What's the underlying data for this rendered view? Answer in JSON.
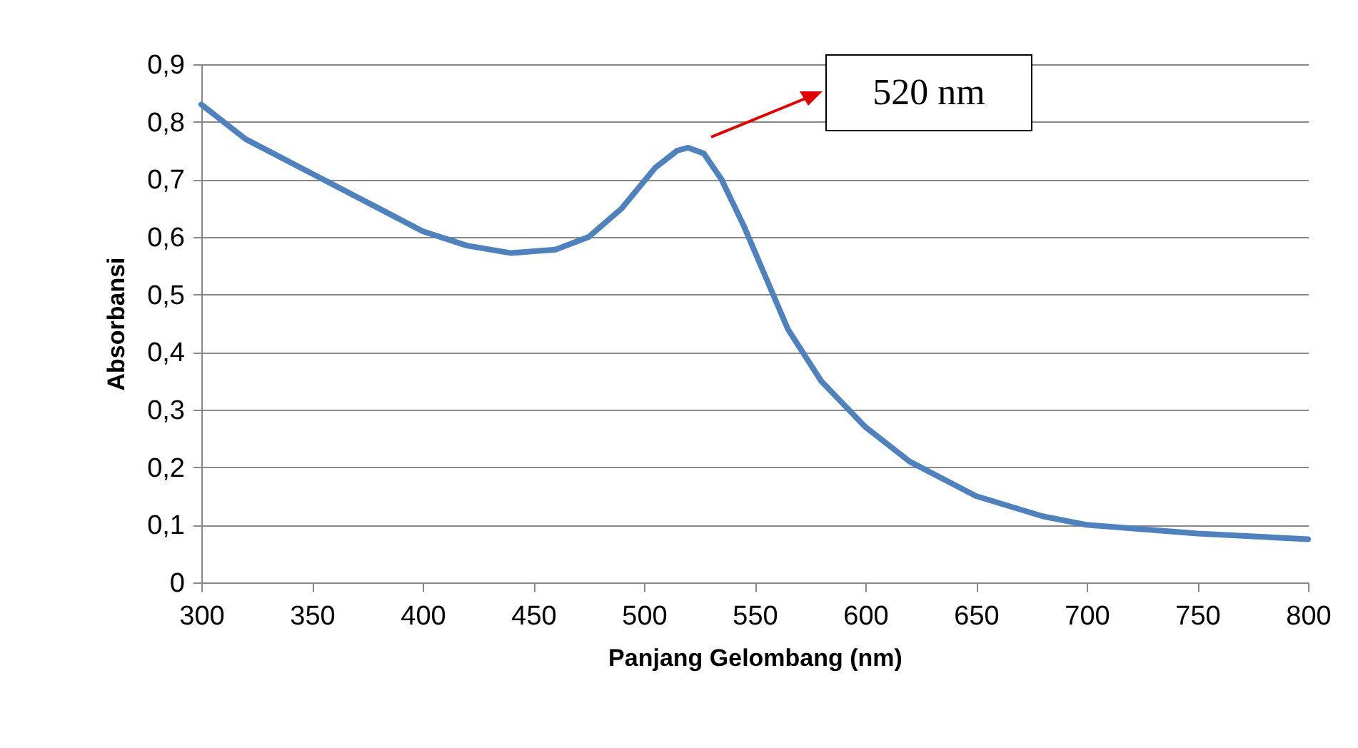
{
  "chart_data": {
    "type": "line",
    "xlabel": "Panjang Gelombang (nm)",
    "ylabel": "Absorbansi",
    "annotations": [
      "520 nm"
    ],
    "xlim": [
      300,
      800
    ],
    "xticks": [
      300,
      350,
      400,
      450,
      500,
      550,
      600,
      650,
      700,
      750,
      800
    ],
    "ylim": [
      0,
      0.9
    ],
    "yticks": [
      0,
      {
        "value": 0.1,
        "label": "0,1"
      },
      {
        "value": 0.2,
        "label": "0,2"
      },
      {
        "value": 0.3,
        "label": "0,3"
      },
      {
        "value": 0.4,
        "label": "0,4"
      },
      {
        "value": 0.5,
        "label": "0,5"
      },
      {
        "value": 0.6,
        "label": "0,6"
      },
      {
        "value": 0.7,
        "label": "0,7"
      },
      {
        "value": 0.8,
        "label": "0,8"
      },
      {
        "value": 0.9,
        "label": "0,9"
      }
    ],
    "grid": "y",
    "marker": "none",
    "line_style": "solid",
    "x": [
      300,
      320,
      350,
      380,
      400,
      420,
      440,
      460,
      475,
      490,
      505,
      515,
      520,
      527,
      535,
      545,
      555,
      565,
      580,
      600,
      620,
      650,
      680,
      700,
      750,
      800
    ],
    "series": [
      {
        "color": "#4f81bd",
        "values": [
          0.83,
          0.77,
          0.71,
          0.65,
          0.61,
          0.585,
          0.572,
          0.578,
          0.6,
          0.65,
          0.72,
          0.75,
          0.755,
          0.745,
          0.7,
          0.62,
          0.53,
          0.44,
          0.35,
          0.27,
          0.21,
          0.15,
          0.115,
          0.1,
          0.085,
          0.075
        ]
      }
    ]
  }
}
